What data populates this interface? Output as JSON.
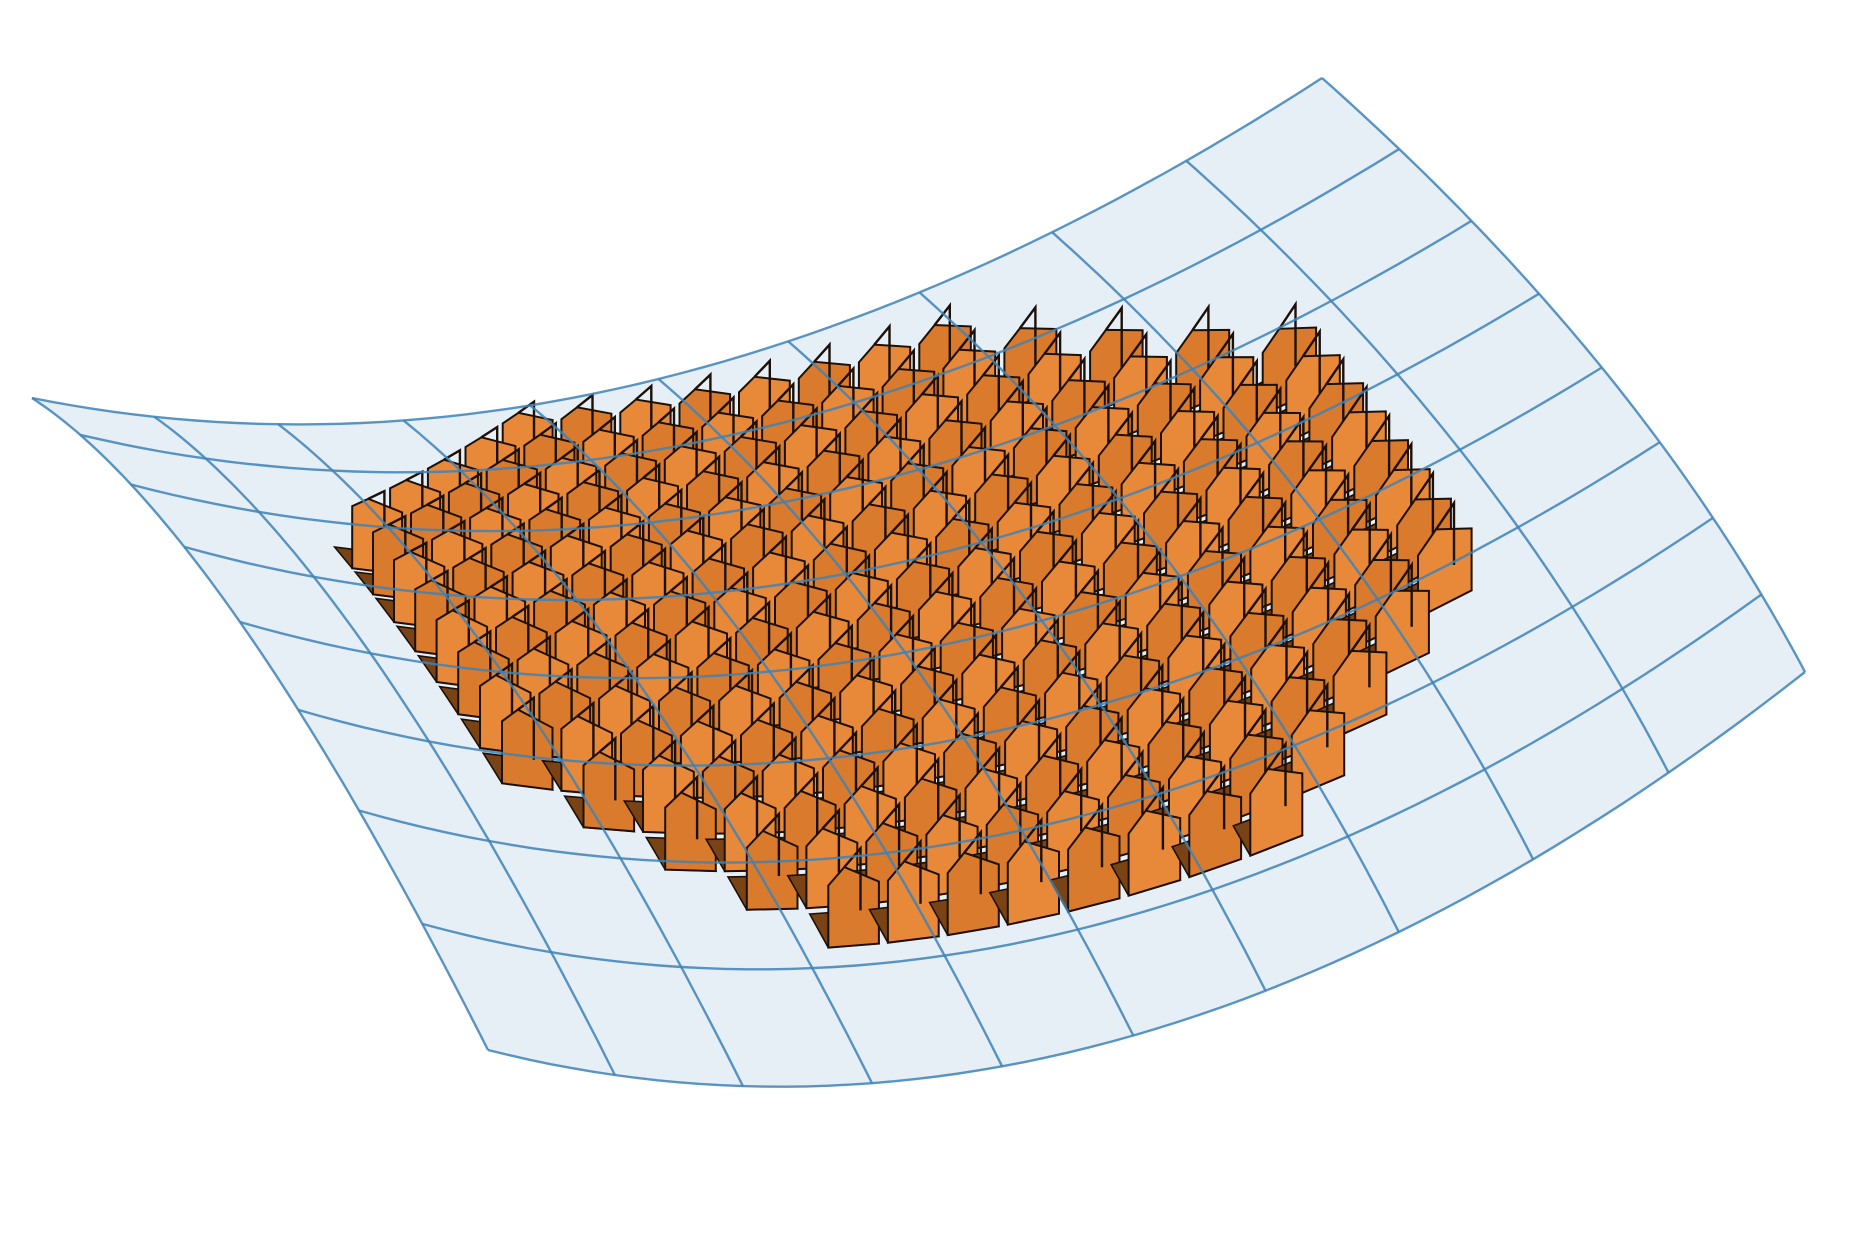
{
  "diagram": {
    "description_free": true,
    "surface": {
      "kind": "saddle-mesh",
      "fill_color": "#e6eef6",
      "line_color": "#3d82b8",
      "grid_u": 10,
      "grid_v": 8
    },
    "array": {
      "kind": "chevron-fin-array",
      "rows": 16,
      "cols": 16,
      "face_color": "#d97a2c",
      "face_light": "#e8893a",
      "side_color": "#7a4316",
      "edge_color": "#1c1008"
    }
  }
}
